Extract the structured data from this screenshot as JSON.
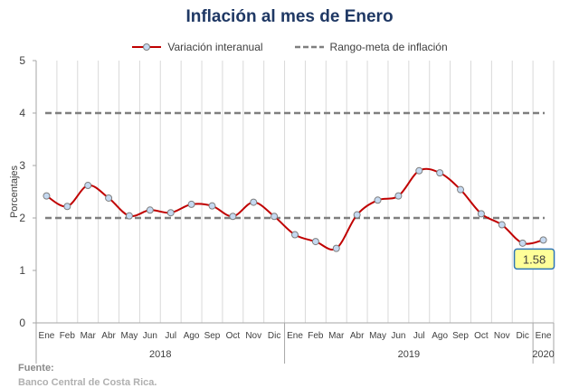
{
  "chart_data": {
    "type": "line",
    "title": "Inflación al mes de Enero",
    "ylabel": "Porcentajes",
    "ylim": [
      0,
      5
    ],
    "yticks": [
      "0",
      "1",
      "2",
      "3",
      "4",
      "5"
    ],
    "grid": "vertical",
    "legend_position": "top",
    "months": [
      "Ene",
      "Feb",
      "Mar",
      "Abr",
      "May",
      "Jun",
      "Jul",
      "Ago",
      "Sep",
      "Oct",
      "Nov",
      "Dic",
      "Ene",
      "Feb",
      "Mar",
      "Abr",
      "May",
      "Jun",
      "Jul",
      "Ago",
      "Sep",
      "Oct",
      "Nov",
      "Dic",
      "Ene"
    ],
    "years": [
      {
        "label": "2018",
        "span": 12
      },
      {
        "label": "2019",
        "span": 12
      },
      {
        "label": "2020",
        "span": 1
      }
    ],
    "series": [
      {
        "name": "Variación interanual",
        "color": "#c00000",
        "values": [
          2.42,
          2.22,
          2.62,
          2.38,
          2.04,
          2.15,
          2.1,
          2.26,
          2.23,
          2.03,
          2.3,
          2.03,
          1.68,
          1.55,
          1.42,
          2.06,
          2.34,
          2.42,
          2.9,
          2.86,
          2.54,
          2.08,
          1.87,
          1.52,
          1.58
        ]
      },
      {
        "name": "Rango-meta de inflación",
        "color": "#7f7f7f",
        "dashed": true,
        "bounds": [
          2,
          4
        ]
      }
    ],
    "annotation": {
      "label": "1.58",
      "fill": "#ffff99",
      "border": "#2e75b6"
    }
  },
  "footer": {
    "source_label": "Fuente:",
    "source_text": "Banco Central de Costa Rica."
  }
}
